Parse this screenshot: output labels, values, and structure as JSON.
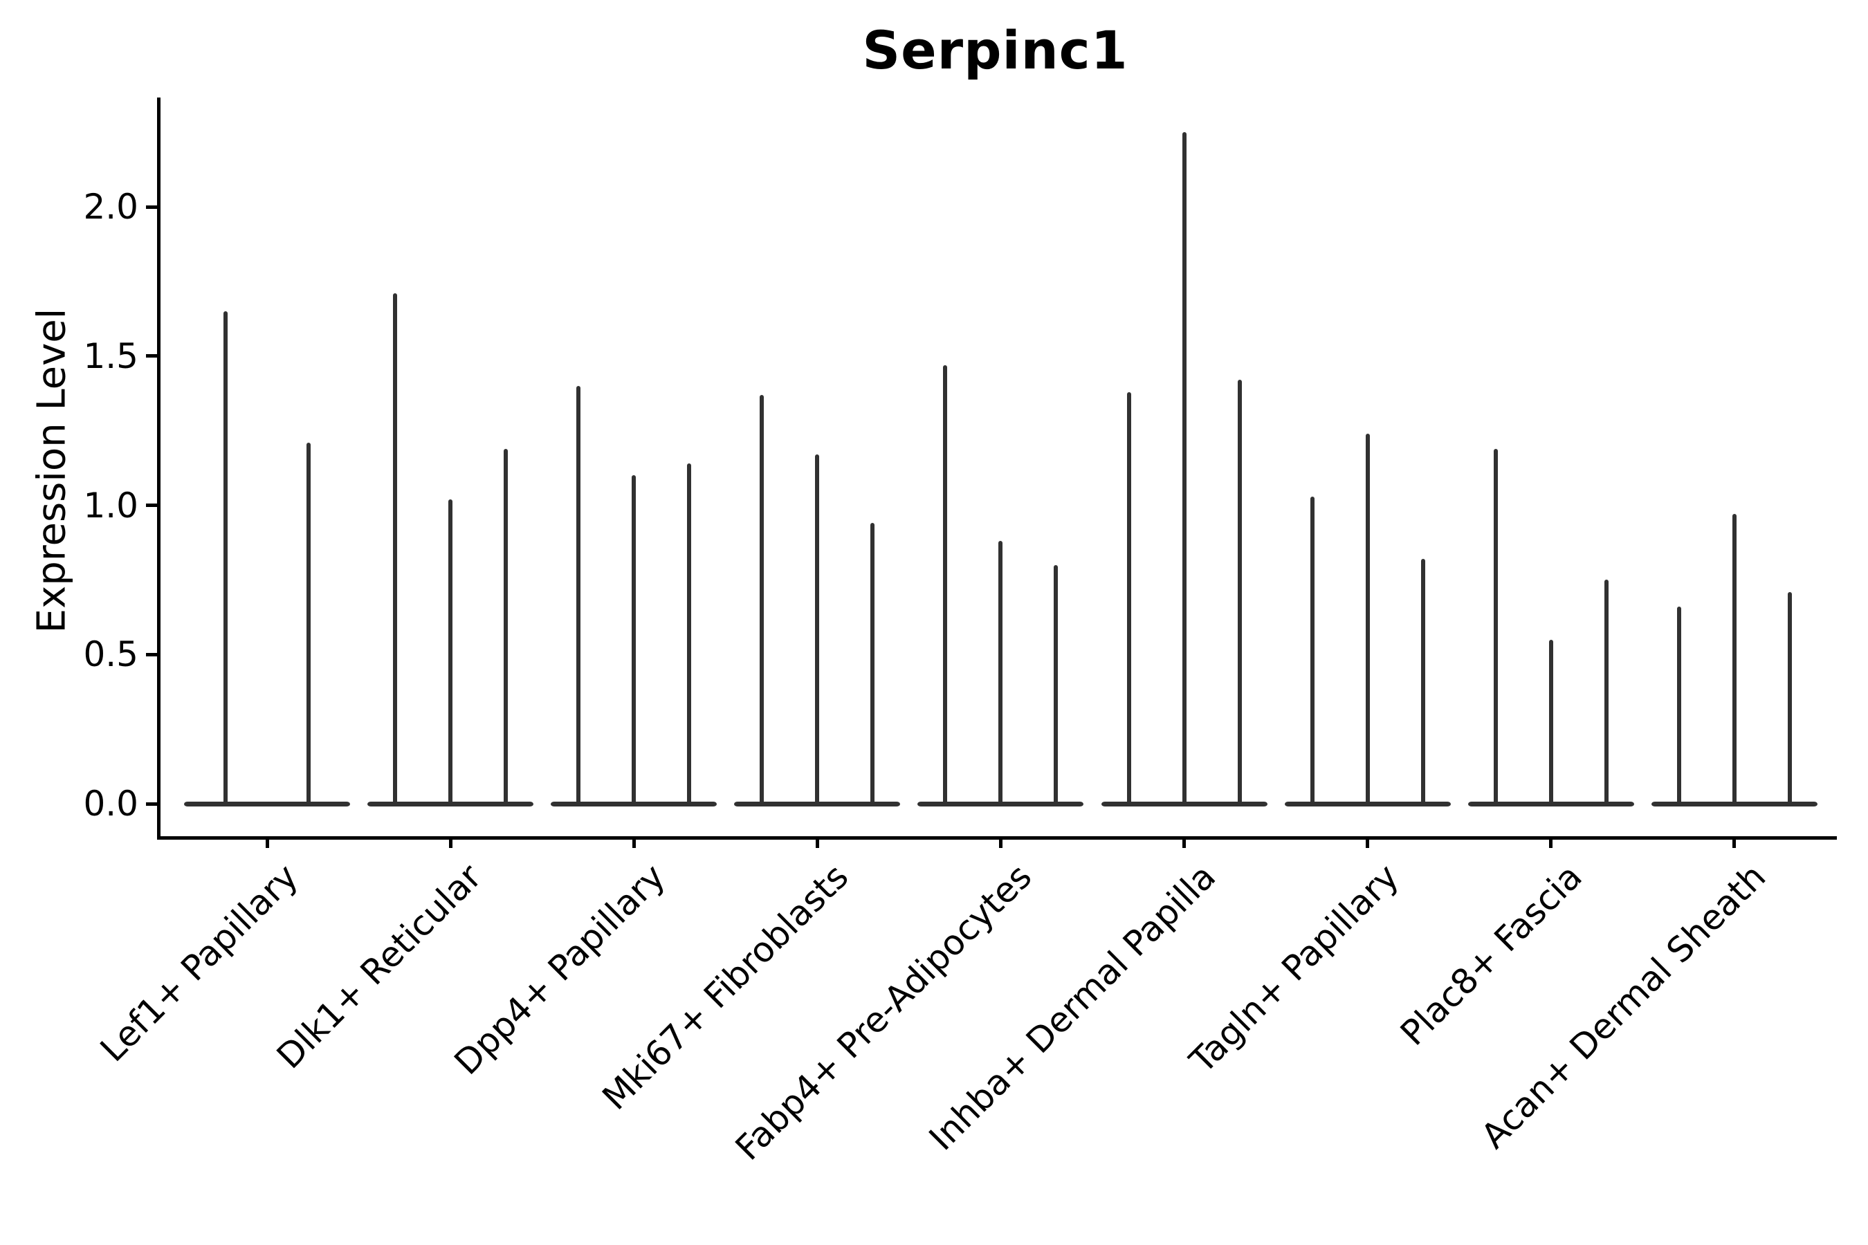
{
  "title": "Serpinc1",
  "y_axis": {
    "label": "Expression Level",
    "tick_labels": [
      "0.0",
      "0.5",
      "1.0",
      "1.5",
      "2.0"
    ],
    "tick_values": [
      0.0,
      0.5,
      1.0,
      1.5,
      2.0
    ]
  },
  "colors": {
    "violin": "#313131",
    "axis": "#000000",
    "text": "#000000",
    "background": "#ffffff"
  },
  "chart_data": {
    "type": "violin",
    "title": "Serpinc1",
    "xlabel": "",
    "ylabel": "Expression Level",
    "ylim": [
      -0.11,
      2.37
    ],
    "grid": false,
    "legend": "none",
    "description": "Violin plot of Serpinc1 expression; each cell-type category contains very thin spike-like violins (most mass at 0) whose tips reach the listed maximum expression values.",
    "categories": [
      "Lef1+ Papillary",
      "Dlk1+ Reticular",
      "Dpp4+ Papillary",
      "Mki67+ Fibroblasts",
      "Fabp4+ Pre-Adipocytes",
      "Inhba+ Dermal Papilla",
      "Tagln+ Papillary",
      "Plac8+ Fascia",
      "Acan+ Dermal Sheath"
    ],
    "series": [
      {
        "category": "Lef1+ Papillary",
        "violin_maxima": [
          1.65,
          1.21
        ]
      },
      {
        "category": "Dlk1+ Reticular",
        "violin_maxima": [
          1.71,
          1.02,
          1.19
        ]
      },
      {
        "category": "Dpp4+ Papillary",
        "violin_maxima": [
          1.4,
          1.1,
          1.14
        ]
      },
      {
        "category": "Mki67+ Fibroblasts",
        "violin_maxima": [
          1.37,
          1.17,
          0.94
        ]
      },
      {
        "category": "Fabp4+ Pre-Adipocytes",
        "violin_maxima": [
          1.47,
          0.88,
          0.8
        ]
      },
      {
        "category": "Inhba+ Dermal Papilla",
        "violin_maxima": [
          1.38,
          2.25,
          1.42
        ]
      },
      {
        "category": "Tagln+ Papillary",
        "violin_maxima": [
          1.03,
          1.24,
          0.82
        ]
      },
      {
        "category": "Plac8+ Fascia",
        "violin_maxima": [
          1.19,
          0.55,
          0.75
        ]
      },
      {
        "category": "Acan+ Dermal Sheath",
        "violin_maxima": [
          0.66,
          0.97,
          0.71
        ]
      }
    ]
  }
}
